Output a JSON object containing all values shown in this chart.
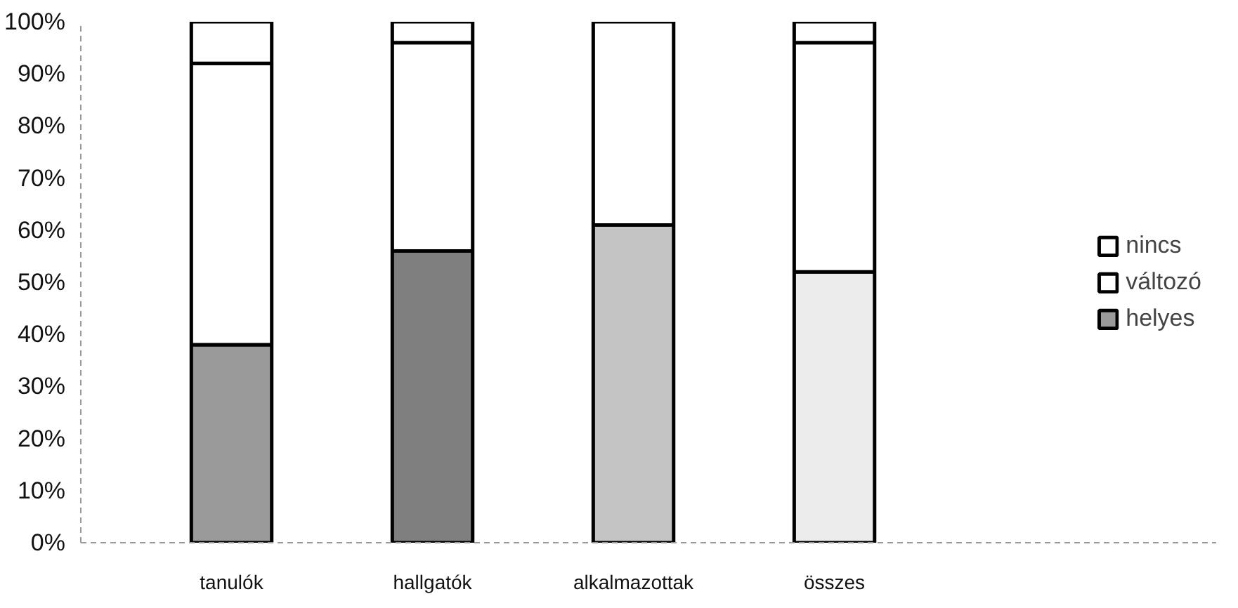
{
  "chart_data": {
    "type": "bar",
    "stacked": true,
    "categories": [
      "tanulók",
      "hallgatók",
      "alkalmazottak",
      "összes"
    ],
    "series": [
      {
        "name": "helyes",
        "colors": [
          "#9a9a9a",
          "#7f7f7f",
          "#c4c4c4",
          "#ececec"
        ],
        "values": [
          38,
          56,
          61,
          52
        ]
      },
      {
        "name": "változó",
        "color": "#ffffff",
        "values": [
          54,
          40,
          39,
          44
        ]
      },
      {
        "name": "nincs",
        "color": "#ffffff",
        "values": [
          8,
          4,
          null,
          4
        ]
      }
    ],
    "ylim": [
      0,
      100
    ],
    "yticks": [
      {
        "value": 0,
        "label": "0%"
      },
      {
        "value": 10,
        "label": "10%"
      },
      {
        "value": 20,
        "label": "20%"
      },
      {
        "value": 30,
        "label": "30%"
      },
      {
        "value": 40,
        "label": "40%"
      },
      {
        "value": 50,
        "label": "50%"
      },
      {
        "value": 60,
        "label": "60%"
      },
      {
        "value": 70,
        "label": "70%"
      },
      {
        "value": 80,
        "label": "80%"
      },
      {
        "value": 90,
        "label": "90%"
      },
      {
        "value": 100,
        "label": "100%"
      }
    ],
    "grid": false,
    "legend": "right"
  }
}
